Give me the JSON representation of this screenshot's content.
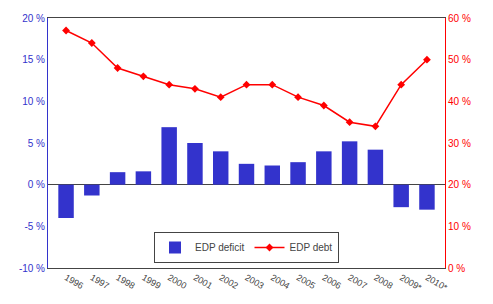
{
  "chart_data": {
    "type": "bar",
    "categories": [
      "1996",
      "1997",
      "1998",
      "1999",
      "2000",
      "2001",
      "2002",
      "2003",
      "2004",
      "2005",
      "2006",
      "2007",
      "2008",
      "2009*",
      "2010*"
    ],
    "series": [
      {
        "name": "EDP deficit",
        "type": "bar",
        "color": "#3333cc",
        "values": [
          -4.0,
          -1.3,
          1.5,
          1.6,
          6.9,
          5.0,
          4.0,
          2.5,
          2.3,
          2.7,
          4.0,
          5.2,
          4.2,
          -2.7,
          -3.0
        ]
      },
      {
        "name": "EDP debt",
        "type": "line",
        "axis": "y2",
        "color": "#ff0000",
        "marker": "diamond",
        "line_style": "solid",
        "values": [
          57.0,
          54.0,
          48.0,
          46.0,
          44.0,
          43.0,
          41.0,
          44.0,
          44.0,
          41.0,
          39.0,
          35.0,
          34.0,
          44.0,
          50.0
        ]
      }
    ],
    "ylim": [
      -10,
      20
    ],
    "yticks": [
      {
        "value": -10,
        "label": "-10 %"
      },
      {
        "value": -5,
        "label": "-5 %"
      },
      {
        "value": 0,
        "label": "0 %"
      },
      {
        "value": 5,
        "label": "5 %"
      },
      {
        "value": 10,
        "label": "10 %"
      },
      {
        "value": 15,
        "label": "15 %"
      },
      {
        "value": 20,
        "label": "20 %"
      }
    ],
    "y2lim": [
      0,
      60
    ],
    "y2ticks": [
      {
        "value": 0,
        "label": "0 %"
      },
      {
        "value": 10,
        "label": "10 %"
      },
      {
        "value": 20,
        "label": "20 %"
      },
      {
        "value": 30,
        "label": "30 %"
      },
      {
        "value": 40,
        "label": "40 %"
      },
      {
        "value": 50,
        "label": "50 %"
      },
      {
        "value": 60,
        "label": "60 %"
      }
    ],
    "grid": false,
    "legend": "lower center"
  }
}
